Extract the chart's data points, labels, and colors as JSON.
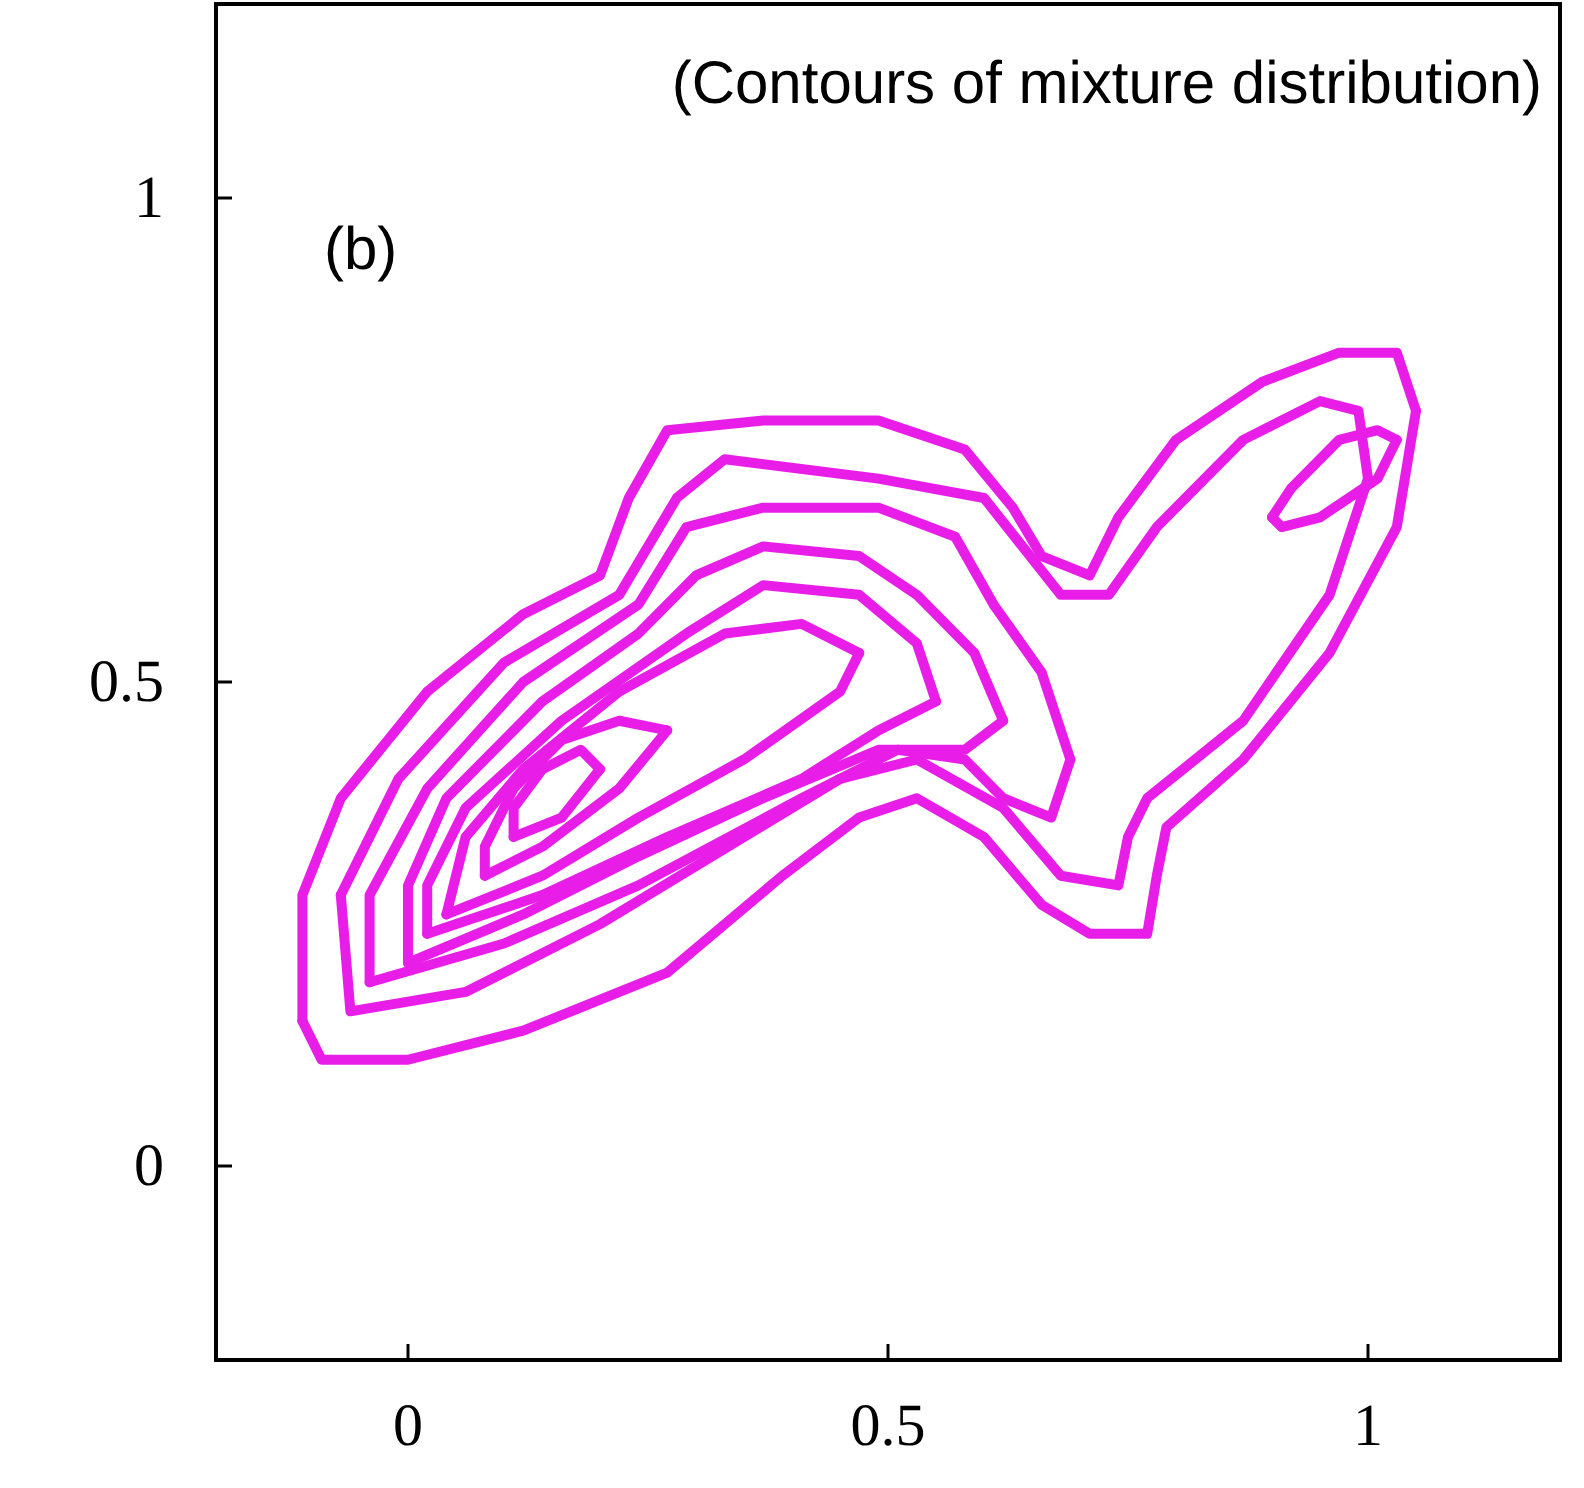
{
  "chart_data": {
    "type": "line",
    "title": "(Contours of mixture distribution)",
    "annotations": [
      "(b)"
    ],
    "xlim": [
      -0.2,
      1.2
    ],
    "xticks": [
      0,
      0.5,
      1
    ],
    "ylim": [
      -0.2,
      1.2
    ],
    "yticks": [
      0,
      0.5,
      1
    ],
    "grid": false,
    "marker": "none",
    "line_style": "solid",
    "series": [
      {
        "color": "#e81ee8",
        "x": [
          -0.11,
          -0.09,
          0.0,
          0.12,
          0.27,
          0.39,
          0.47,
          0.53,
          0.6,
          0.66,
          0.71,
          0.77,
          0.78,
          0.79,
          0.87,
          0.96,
          1.03,
          1.05
        ],
        "values": [
          0.15,
          0.11,
          0.11,
          0.14,
          0.2,
          0.3,
          0.36,
          0.38,
          0.34,
          0.27,
          0.24,
          0.24,
          0.3,
          0.35,
          0.42,
          0.53,
          0.66,
          0.78
        ]
      },
      {
        "color": "#e81ee8",
        "x": [
          -0.11,
          -0.11,
          -0.07,
          0.02,
          0.12,
          0.2,
          0.23,
          0.27,
          0.37,
          0.49,
          0.58,
          0.63,
          0.66,
          0.71,
          0.74,
          0.8,
          0.89,
          0.97,
          1.03,
          1.05
        ],
        "values": [
          0.15,
          0.28,
          0.38,
          0.49,
          0.57,
          0.61,
          0.69,
          0.76,
          0.77,
          0.77,
          0.74,
          0.68,
          0.63,
          0.61,
          0.67,
          0.75,
          0.81,
          0.84,
          0.84,
          0.78
        ]
      },
      {
        "color": "#e81ee8",
        "x": [
          -0.07,
          -0.06,
          0.06,
          0.2,
          0.35,
          0.45,
          0.53,
          0.62,
          0.68,
          0.74,
          0.75,
          0.77,
          0.87,
          0.96,
          1.0
        ],
        "values": [
          0.28,
          0.16,
          0.18,
          0.25,
          0.34,
          0.4,
          0.42,
          0.37,
          0.3,
          0.29,
          0.34,
          0.38,
          0.46,
          0.59,
          0.71
        ]
      },
      {
        "color": "#e81ee8",
        "x": [
          -0.07,
          -0.01,
          0.1,
          0.22,
          0.28,
          0.33,
          0.49,
          0.6,
          0.64,
          0.68,
          0.73,
          0.78,
          0.87,
          0.95,
          0.99,
          1.0
        ],
        "values": [
          0.28,
          0.4,
          0.52,
          0.59,
          0.69,
          0.73,
          0.71,
          0.69,
          0.64,
          0.59,
          0.59,
          0.66,
          0.75,
          0.79,
          0.78,
          0.71
        ]
      },
      {
        "color": "#e81ee8",
        "x": [
          -0.04,
          0.1,
          0.24,
          0.41,
          0.51,
          0.58,
          0.62,
          0.67,
          0.69
        ],
        "values": [
          0.19,
          0.23,
          0.29,
          0.38,
          0.43,
          0.42,
          0.38,
          0.36,
          0.42
        ]
      },
      {
        "color": "#e81ee8",
        "x": [
          -0.04,
          -0.04,
          0.02,
          0.12,
          0.24,
          0.29,
          0.37,
          0.49,
          0.57,
          0.61,
          0.66,
          0.69
        ],
        "values": [
          0.19,
          0.28,
          0.39,
          0.5,
          0.58,
          0.66,
          0.68,
          0.68,
          0.65,
          0.58,
          0.51,
          0.42
        ]
      },
      {
        "color": "#e81ee8",
        "x": [
          0.9,
          0.91,
          0.95,
          1.01,
          1.03
        ],
        "values": [
          0.67,
          0.66,
          0.67,
          0.71,
          0.75
        ]
      },
      {
        "color": "#e81ee8",
        "x": [
          0.9,
          0.92,
          0.97,
          1.01,
          1.03
        ],
        "values": [
          0.67,
          0.7,
          0.75,
          0.76,
          0.75
        ]
      },
      {
        "color": "#e81ee8",
        "x": [
          0.0,
          0.12,
          0.24,
          0.37,
          0.49,
          0.58,
          0.62
        ],
        "values": [
          0.21,
          0.26,
          0.32,
          0.38,
          0.43,
          0.43,
          0.46
        ]
      },
      {
        "color": "#e81ee8",
        "x": [
          0.0,
          0.0,
          0.04,
          0.14,
          0.24,
          0.3,
          0.37,
          0.47,
          0.53,
          0.59,
          0.62
        ],
        "values": [
          0.21,
          0.29,
          0.38,
          0.48,
          0.55,
          0.61,
          0.64,
          0.63,
          0.59,
          0.53,
          0.46
        ]
      },
      {
        "color": "#e81ee8",
        "x": [
          0.02,
          0.14,
          0.27,
          0.41,
          0.49,
          0.55
        ],
        "values": [
          0.24,
          0.28,
          0.34,
          0.4,
          0.45,
          0.48
        ]
      },
      {
        "color": "#e81ee8",
        "x": [
          0.02,
          0.02,
          0.06,
          0.16,
          0.29,
          0.37,
          0.47,
          0.53,
          0.55
        ],
        "values": [
          0.24,
          0.29,
          0.37,
          0.46,
          0.55,
          0.6,
          0.59,
          0.54,
          0.48
        ]
      },
      {
        "color": "#e81ee8",
        "x": [
          0.04,
          0.14,
          0.24,
          0.35,
          0.45,
          0.47
        ],
        "values": [
          0.26,
          0.3,
          0.36,
          0.42,
          0.49,
          0.53
        ]
      },
      {
        "color": "#e81ee8",
        "x": [
          0.04,
          0.06,
          0.12,
          0.22,
          0.33,
          0.41,
          0.47
        ],
        "values": [
          0.26,
          0.34,
          0.41,
          0.49,
          0.55,
          0.56,
          0.53
        ]
      },
      {
        "color": "#e81ee8",
        "x": [
          0.08,
          0.14,
          0.22,
          0.27
        ],
        "values": [
          0.3,
          0.33,
          0.39,
          0.45
        ]
      },
      {
        "color": "#e81ee8",
        "x": [
          0.08,
          0.08,
          0.11,
          0.16,
          0.22,
          0.27
        ],
        "values": [
          0.3,
          0.33,
          0.39,
          0.44,
          0.46,
          0.45
        ]
      },
      {
        "color": "#e81ee8",
        "x": [
          0.11,
          0.16,
          0.2
        ],
        "values": [
          0.34,
          0.36,
          0.41
        ]
      },
      {
        "color": "#e81ee8",
        "x": [
          0.11,
          0.11,
          0.14,
          0.18,
          0.2
        ],
        "values": [
          0.34,
          0.37,
          0.41,
          0.43,
          0.41
        ]
      }
    ]
  }
}
